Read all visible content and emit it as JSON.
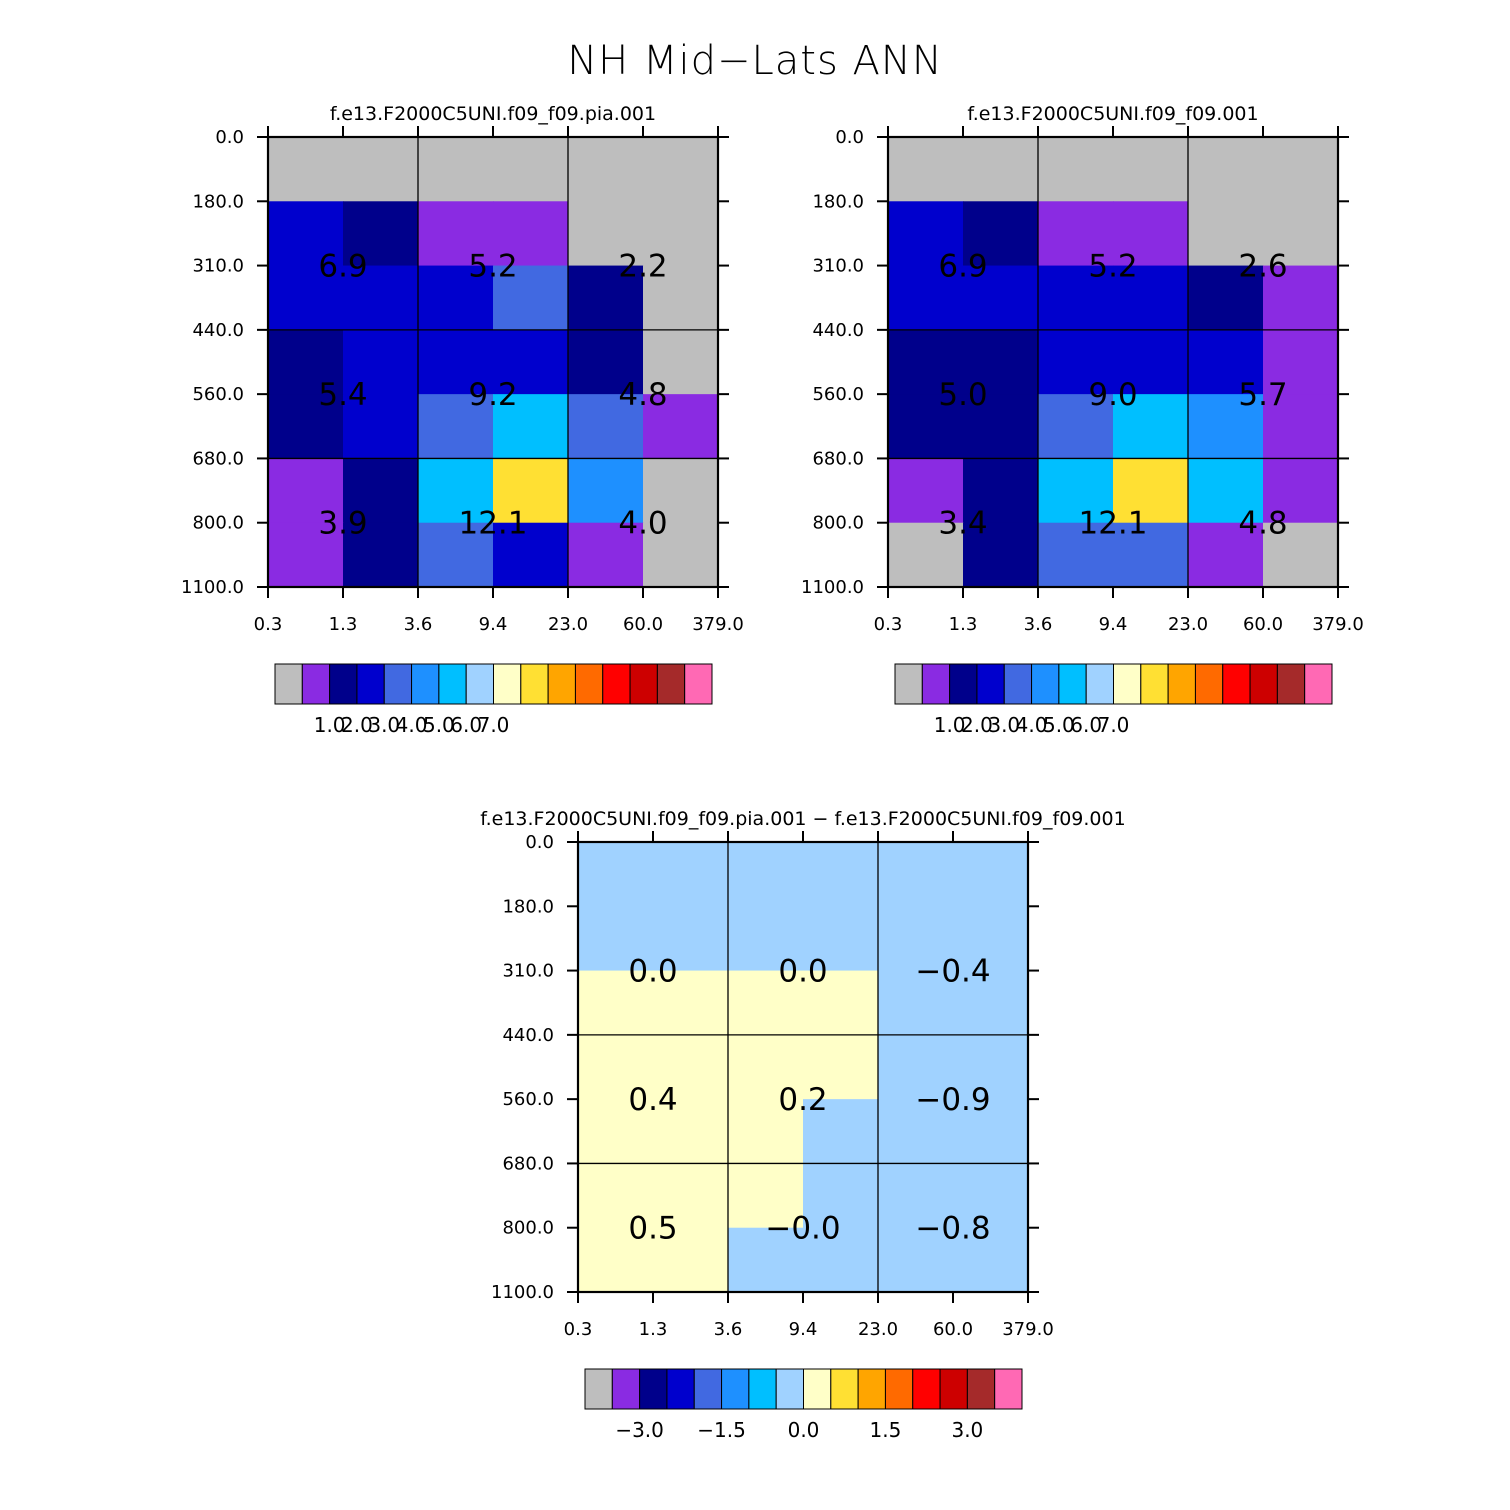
{
  "title": "NH Mid−Lats ANN",
  "chart_data": [
    {
      "type": "heatmap",
      "title": "f.e13.F2000C5UNI.f09_f09.pia.001",
      "x_edges": [
        "0.3",
        "1.3",
        "3.6",
        "9.4",
        "23.0",
        "60.0",
        "379.0"
      ],
      "y_edges": [
        "0.0",
        "180.0",
        "310.0",
        "440.0",
        "560.0",
        "680.0",
        "800.0",
        "1100.0"
      ],
      "fine_colors": [
        [
          "#bebebe",
          "#bebebe",
          "#bebebe",
          "#bebebe",
          "#bebebe",
          "#bebebe"
        ],
        [
          "#0000cd",
          "#00008b",
          "#8a2be2",
          "#8a2be2",
          "#bebebe",
          "#bebebe"
        ],
        [
          "#0000cd",
          "#0000cd",
          "#0000cd",
          "#4169e1",
          "#00008b",
          "#bebebe"
        ],
        [
          "#00008b",
          "#0000cd",
          "#0000cd",
          "#0000cd",
          "#00008b",
          "#bebebe"
        ],
        [
          "#00008b",
          "#0000cd",
          "#4169e1",
          "#00bfff",
          "#4169e1",
          "#8a2be2"
        ],
        [
          "#8a2be2",
          "#00008b",
          "#00bfff",
          "#ffe033",
          "#1e90ff",
          "#bebebe"
        ],
        [
          "#8a2be2",
          "#00008b",
          "#4169e1",
          "#0000cd",
          "#8a2be2",
          "#bebebe"
        ]
      ],
      "coarse_values": [
        [
          "6.9",
          "5.2",
          "2.2"
        ],
        [
          "5.4",
          "9.2",
          "4.8"
        ],
        [
          "3.9",
          "12.1",
          "4.0"
        ]
      ],
      "colorbar": {
        "colors": [
          "#bebebe",
          "#8a2be2",
          "#00008b",
          "#0000cd",
          "#4169e1",
          "#1e90ff",
          "#00bfff",
          "#a0d2ff",
          "#ffffc8",
          "#ffe033",
          "#ffa500",
          "#ff6a00",
          "#ff0000",
          "#cd0000",
          "#a52a2a",
          "#ff69b4"
        ],
        "labels": [
          "1.0",
          "2.0",
          "3.0",
          "4.0",
          "5.0",
          "6.0",
          "7.0"
        ]
      }
    },
    {
      "type": "heatmap",
      "title": "f.e13.F2000C5UNI.f09_f09.001",
      "x_edges": [
        "0.3",
        "1.3",
        "3.6",
        "9.4",
        "23.0",
        "60.0",
        "379.0"
      ],
      "y_edges": [
        "0.0",
        "180.0",
        "310.0",
        "440.0",
        "560.0",
        "680.0",
        "800.0",
        "1100.0"
      ],
      "fine_colors": [
        [
          "#bebebe",
          "#bebebe",
          "#bebebe",
          "#bebebe",
          "#bebebe",
          "#bebebe"
        ],
        [
          "#0000cd",
          "#00008b",
          "#8a2be2",
          "#8a2be2",
          "#bebebe",
          "#bebebe"
        ],
        [
          "#0000cd",
          "#0000cd",
          "#0000cd",
          "#0000cd",
          "#00008b",
          "#8a2be2"
        ],
        [
          "#00008b",
          "#00008b",
          "#0000cd",
          "#0000cd",
          "#0000cd",
          "#8a2be2"
        ],
        [
          "#00008b",
          "#00008b",
          "#4169e1",
          "#00bfff",
          "#1e90ff",
          "#8a2be2"
        ],
        [
          "#8a2be2",
          "#00008b",
          "#00bfff",
          "#ffe033",
          "#00bfff",
          "#8a2be2"
        ],
        [
          "#bebebe",
          "#00008b",
          "#4169e1",
          "#4169e1",
          "#8a2be2",
          "#bebebe"
        ]
      ],
      "coarse_values": [
        [
          "6.9",
          "5.2",
          "2.6"
        ],
        [
          "5.0",
          "9.0",
          "5.7"
        ],
        [
          "3.4",
          "12.1",
          "4.8"
        ]
      ],
      "colorbar": {
        "colors": [
          "#bebebe",
          "#8a2be2",
          "#00008b",
          "#0000cd",
          "#4169e1",
          "#1e90ff",
          "#00bfff",
          "#a0d2ff",
          "#ffffc8",
          "#ffe033",
          "#ffa500",
          "#ff6a00",
          "#ff0000",
          "#cd0000",
          "#a52a2a",
          "#ff69b4"
        ],
        "labels": [
          "1.0",
          "2.0",
          "3.0",
          "4.0",
          "5.0",
          "6.0",
          "7.0"
        ]
      }
    },
    {
      "type": "heatmap",
      "title": "f.e13.F2000C5UNI.f09_f09.pia.001 − f.e13.F2000C5UNI.f09_f09.001",
      "x_edges": [
        "0.3",
        "1.3",
        "3.6",
        "9.4",
        "23.0",
        "60.0",
        "379.0"
      ],
      "y_edges": [
        "0.0",
        "180.0",
        "310.0",
        "440.0",
        "560.0",
        "680.0",
        "800.0",
        "1100.0"
      ],
      "fine_colors": [
        [
          "#a0d2ff",
          "#a0d2ff",
          "#a0d2ff",
          "#a0d2ff",
          "#a0d2ff",
          "#a0d2ff"
        ],
        [
          "#a0d2ff",
          "#a0d2ff",
          "#a0d2ff",
          "#a0d2ff",
          "#a0d2ff",
          "#a0d2ff"
        ],
        [
          "#ffffc8",
          "#ffffc8",
          "#ffffc8",
          "#ffffc8",
          "#a0d2ff",
          "#a0d2ff"
        ],
        [
          "#ffffc8",
          "#ffffc8",
          "#ffffc8",
          "#ffffc8",
          "#a0d2ff",
          "#a0d2ff"
        ],
        [
          "#ffffc8",
          "#ffffc8",
          "#ffffc8",
          "#a0d2ff",
          "#a0d2ff",
          "#a0d2ff"
        ],
        [
          "#ffffc8",
          "#ffffc8",
          "#ffffc8",
          "#a0d2ff",
          "#a0d2ff",
          "#a0d2ff"
        ],
        [
          "#ffffc8",
          "#ffffc8",
          "#a0d2ff",
          "#a0d2ff",
          "#a0d2ff",
          "#a0d2ff"
        ]
      ],
      "coarse_values": [
        [
          "0.0",
          "0.0",
          "−0.4"
        ],
        [
          "0.4",
          "0.2",
          "−0.9"
        ],
        [
          "0.5",
          "−0.0",
          "−0.8"
        ]
      ],
      "colorbar": {
        "colors": [
          "#bebebe",
          "#8a2be2",
          "#00008b",
          "#0000cd",
          "#4169e1",
          "#1e90ff",
          "#00bfff",
          "#a0d2ff",
          "#ffffc8",
          "#ffe033",
          "#ffa500",
          "#ff6a00",
          "#ff0000",
          "#cd0000",
          "#a52a2a",
          "#ff69b4"
        ],
        "labels": [
          "−3.0",
          "−1.5",
          "0.0",
          "1.5",
          "3.0"
        ]
      }
    }
  ]
}
